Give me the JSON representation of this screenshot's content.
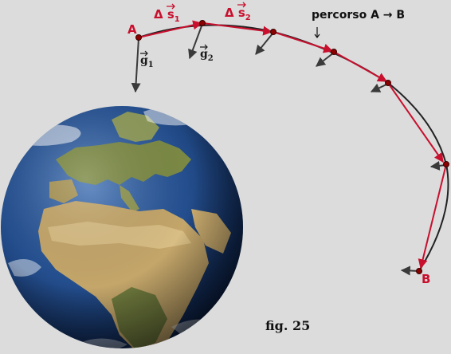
{
  "figure": {
    "caption": "fig. 25",
    "path_label": "percorso A → B",
    "point_a": "A",
    "point_b": "B",
    "delta_s1": {
      "main": "Δ s",
      "sub": "1"
    },
    "delta_s2": {
      "main": "Δ s",
      "sub": "2"
    },
    "g1": {
      "main": "g",
      "sub": "1"
    },
    "g2": {
      "main": "g",
      "sub": "2"
    },
    "colors": {
      "background": "#dcdcdc",
      "displacement": "#c8102e",
      "gravity": "#3a3a3a",
      "trajectory": "#222222",
      "ocean": "#1d3f7a",
      "land": "#b89a5a"
    },
    "icons": [
      "earth-globe"
    ]
  }
}
